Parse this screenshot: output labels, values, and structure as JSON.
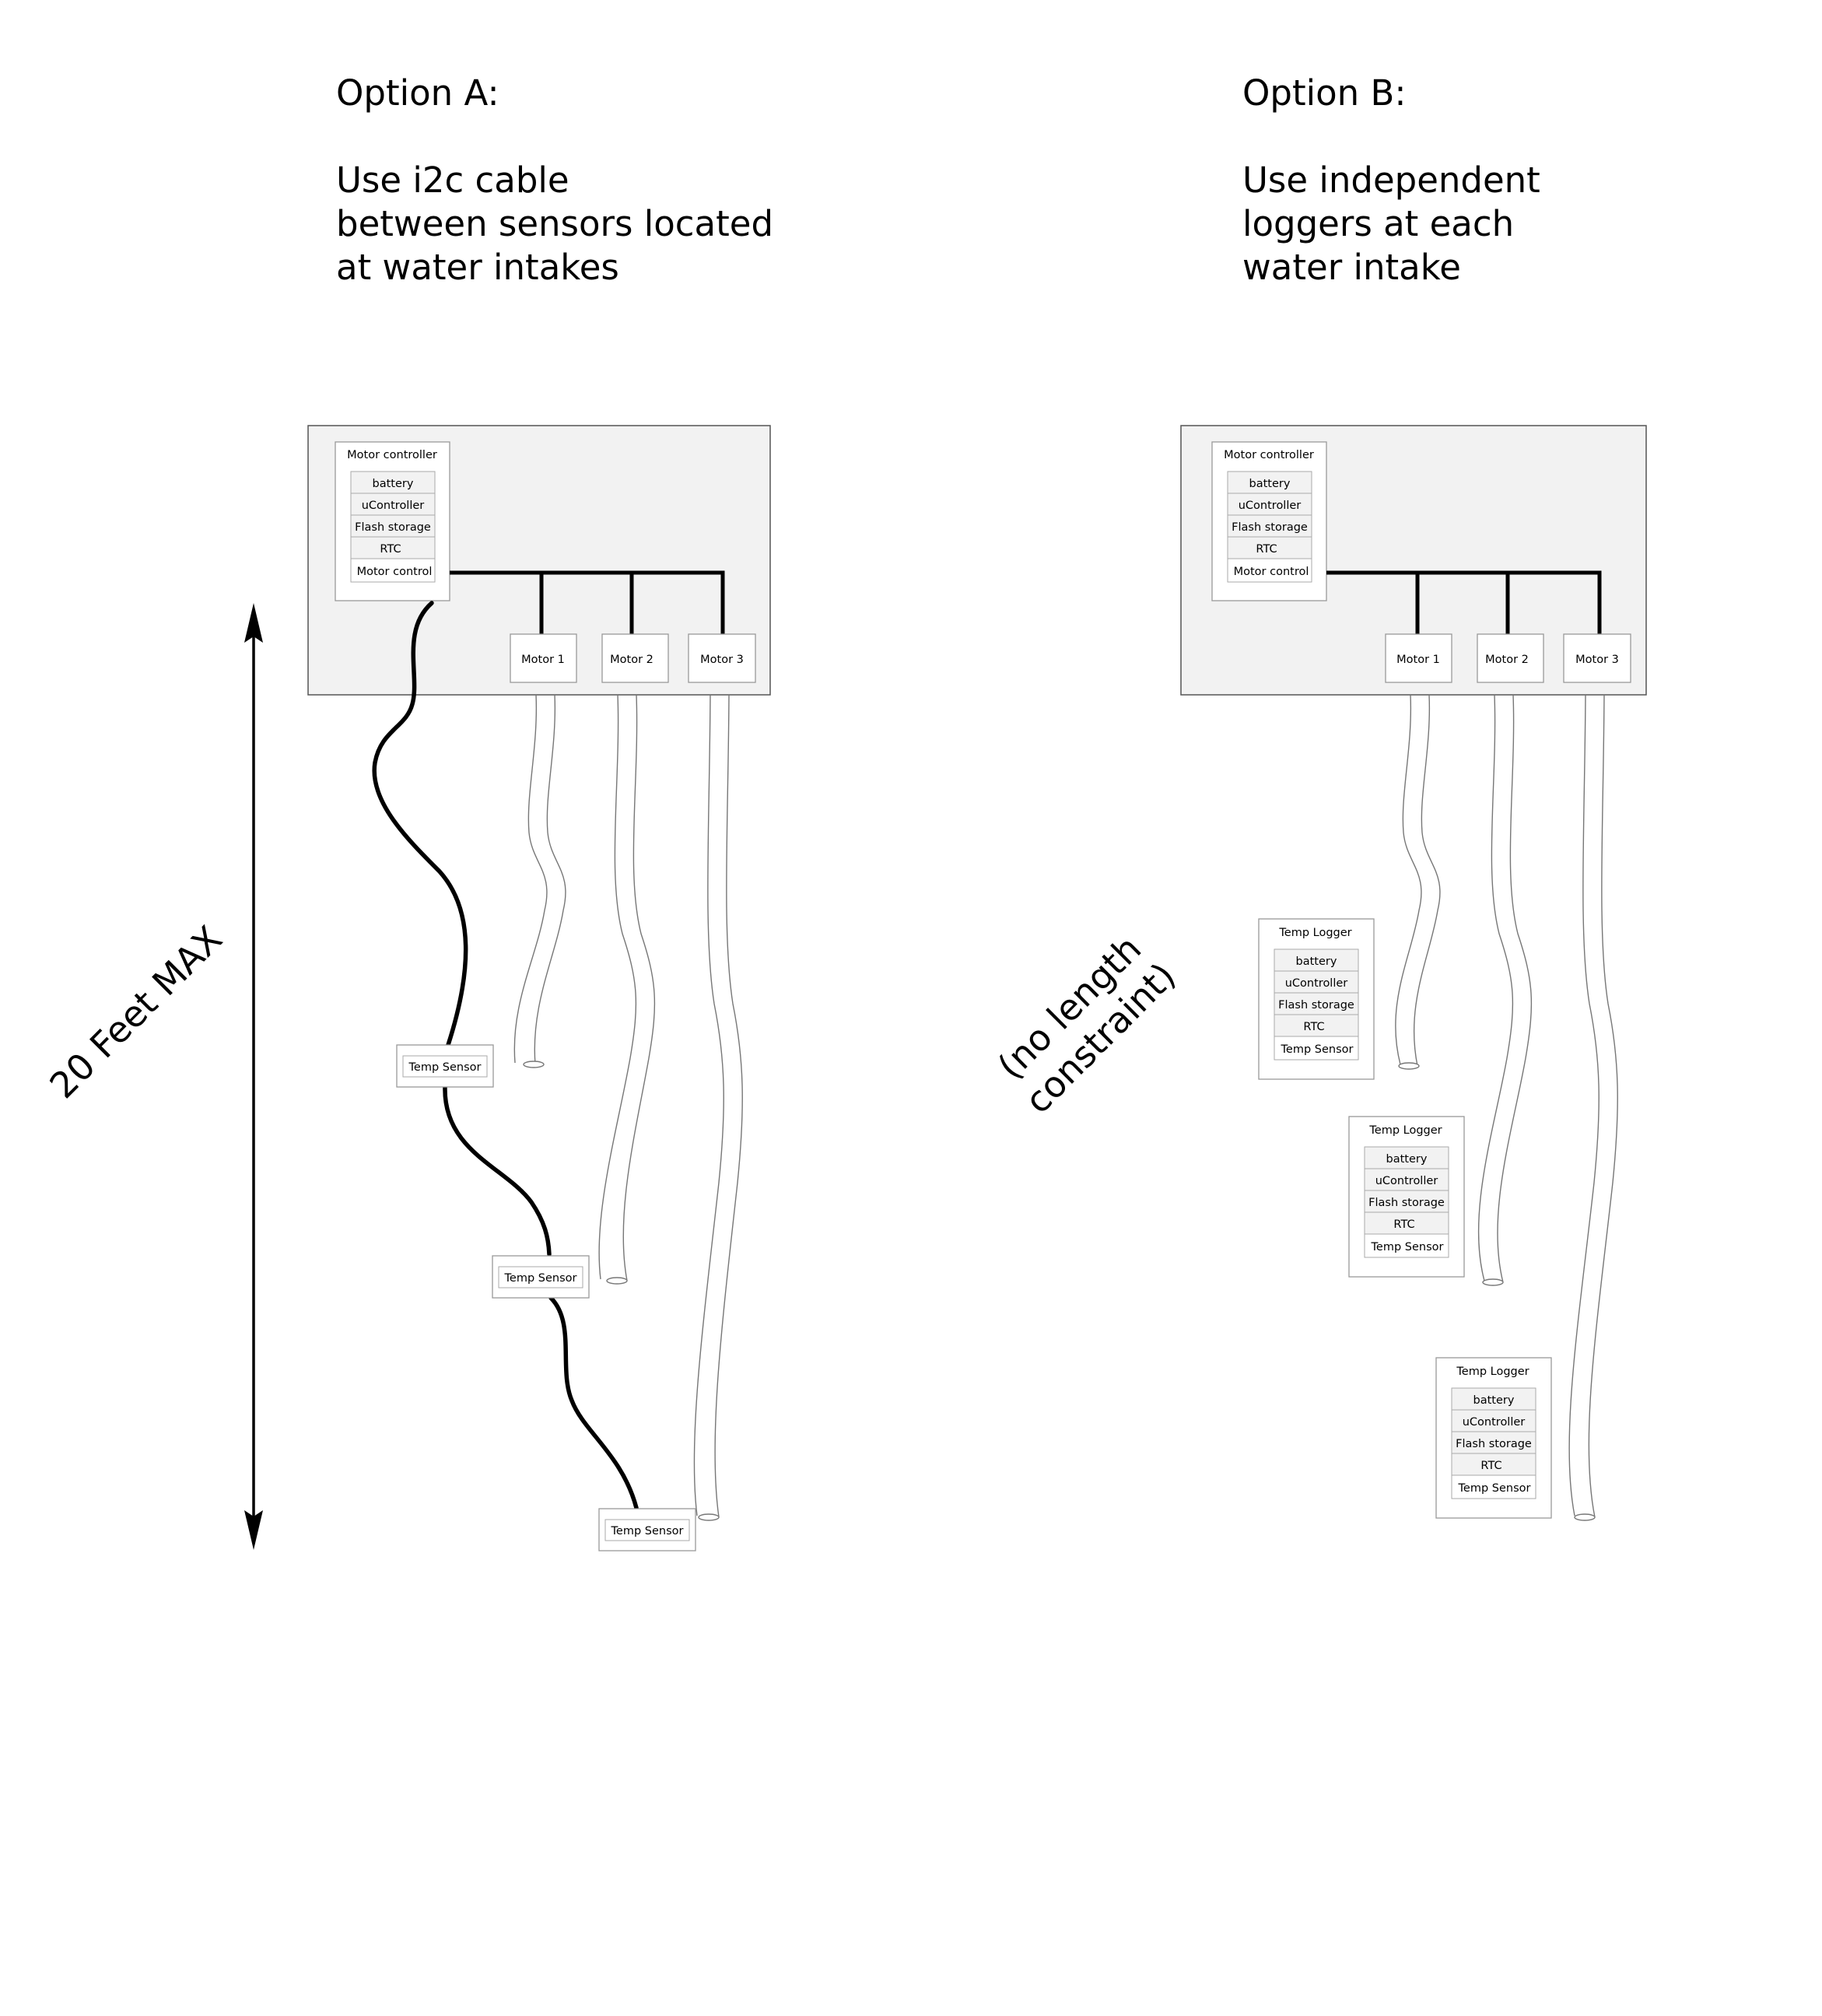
{
  "optionA": {
    "heading": "Option A:",
    "desc": [
      "Use i2c cable",
      "between sensors located",
      "at water intakes"
    ],
    "controller": {
      "title": "Motor controller",
      "rows": [
        "battery",
        "uController",
        "Flash storage",
        "RTC",
        "Motor control"
      ]
    },
    "motors": [
      "Motor 1",
      "Motor 2",
      "Motor 3"
    ],
    "sensors": [
      "Temp Sensor",
      "Temp Sensor",
      "Temp Sensor"
    ],
    "length_label": "20 Feet MAX"
  },
  "optionB": {
    "heading": "Option B:",
    "desc": [
      "Use independent",
      "loggers at each",
      "water intake"
    ],
    "controller": {
      "title": "Motor controller",
      "rows": [
        "battery",
        "uController",
        "Flash storage",
        "RTC",
        "Motor control"
      ]
    },
    "motors": [
      "Motor 1",
      "Motor 2",
      "Motor 3"
    ],
    "loggers": [
      {
        "title": "Temp Logger",
        "rows": [
          "battery",
          "uController",
          "Flash storage",
          "RTC",
          "Temp Sensor"
        ]
      },
      {
        "title": "Temp Logger",
        "rows": [
          "battery",
          "uController",
          "Flash storage",
          "RTC",
          "Temp Sensor"
        ]
      },
      {
        "title": "Temp Logger",
        "rows": [
          "battery",
          "uController",
          "Flash storage",
          "RTC",
          "Temp Sensor"
        ]
      }
    ],
    "constraint_label": [
      "(no length",
      "constraint)"
    ]
  }
}
